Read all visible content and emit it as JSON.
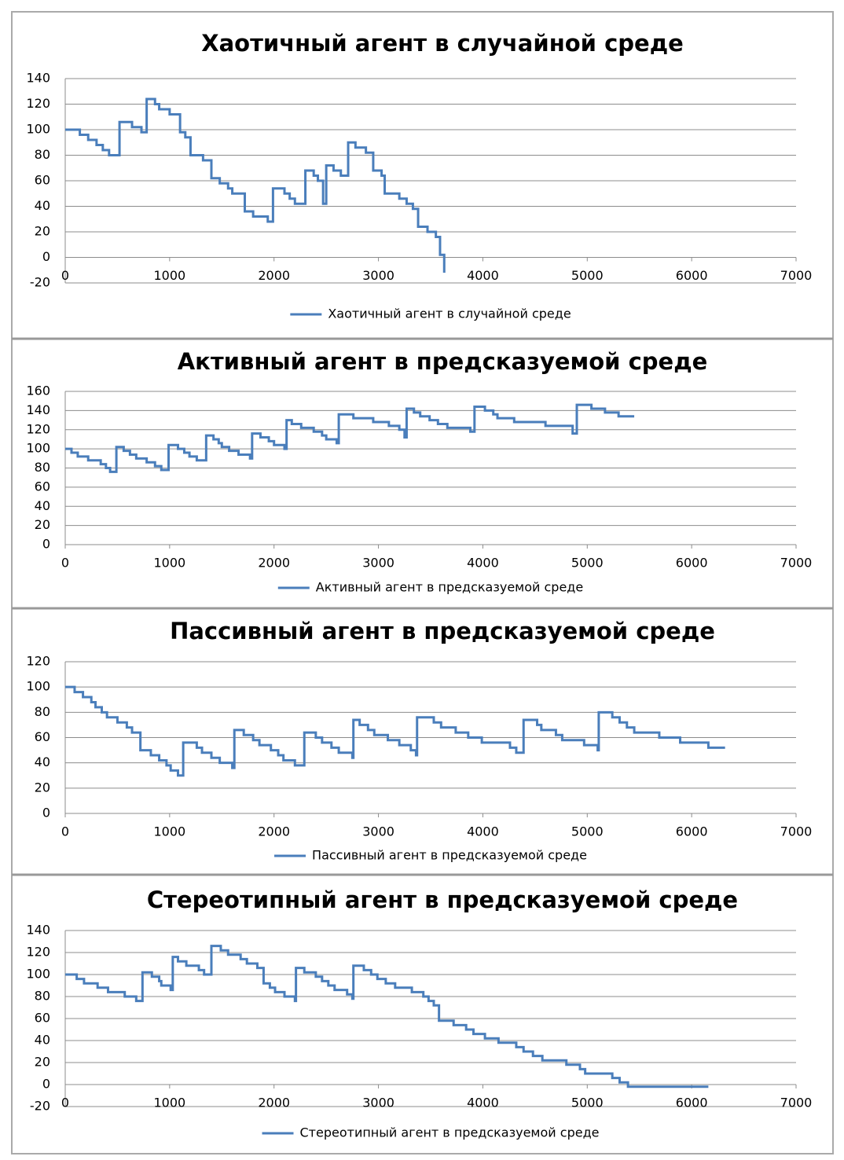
{
  "chart_data": [
    {
      "type": "line",
      "step": true,
      "title": "Хаотичный агент в случайной среде",
      "x": [
        0,
        140,
        220,
        300,
        360,
        420,
        520,
        640,
        730,
        780,
        860,
        900,
        1000,
        1100,
        1150,
        1200,
        1320,
        1400,
        1480,
        1560,
        1600,
        1720,
        1800,
        1940,
        1990,
        2100,
        2150,
        2200,
        2300,
        2380,
        2420,
        2470,
        2500,
        2570,
        2640,
        2710,
        2780,
        2880,
        2950,
        3030,
        3060,
        3200,
        3270,
        3330,
        3380,
        3470,
        3550,
        3590,
        3630
      ],
      "series": [
        {
          "name": "Хаотичный агент в случайной среде",
          "color": "#4a7ebb",
          "values": [
            100,
            96,
            92,
            88,
            84,
            80,
            106,
            102,
            98,
            124,
            120,
            116,
            112,
            98,
            94,
            80,
            76,
            62,
            58,
            54,
            50,
            36,
            32,
            28,
            54,
            50,
            46,
            42,
            68,
            64,
            60,
            42,
            72,
            68,
            64,
            90,
            86,
            82,
            68,
            64,
            50,
            46,
            42,
            38,
            24,
            20,
            16,
            2,
            -12
          ]
        }
      ],
      "xlim": [
        0,
        7000
      ],
      "xticks": [
        0,
        1000,
        2000,
        3000,
        4000,
        5000,
        6000,
        7000
      ],
      "ylim": [
        -20,
        140
      ],
      "yticks": [
        -20,
        0,
        20,
        40,
        60,
        80,
        100,
        120,
        140
      ],
      "grid": true
    },
    {
      "type": "line",
      "step": true,
      "title": "Активный агент в предсказуемой среде",
      "x": [
        0,
        60,
        120,
        220,
        340,
        390,
        430,
        490,
        560,
        620,
        680,
        780,
        860,
        920,
        990,
        1080,
        1140,
        1190,
        1260,
        1350,
        1420,
        1470,
        1500,
        1570,
        1660,
        1770,
        1790,
        1870,
        1950,
        2000,
        2100,
        2120,
        2170,
        2260,
        2380,
        2460,
        2500,
        2600,
        2620,
        2760,
        2950,
        3100,
        3200,
        3250,
        3270,
        3340,
        3400,
        3490,
        3570,
        3660,
        3880,
        3920,
        4020,
        4100,
        4140,
        4300,
        4600,
        4860,
        4900,
        5040,
        5170,
        5300,
        5450
      ],
      "series": [
        {
          "name": "Активный агент в предсказуемой среде",
          "color": "#4a7ebb",
          "values": [
            100,
            96,
            92,
            88,
            84,
            80,
            76,
            102,
            98,
            94,
            90,
            86,
            82,
            78,
            104,
            100,
            96,
            92,
            88,
            114,
            110,
            106,
            102,
            98,
            94,
            90,
            116,
            112,
            108,
            104,
            100,
            130,
            126,
            122,
            118,
            114,
            110,
            106,
            136,
            132,
            128,
            124,
            120,
            112,
            142,
            138,
            134,
            130,
            126,
            122,
            118,
            144,
            140,
            136,
            132,
            128,
            124,
            116,
            146,
            142,
            138,
            134,
            134
          ]
        }
      ],
      "xlim": [
        0,
        7000
      ],
      "xticks": [
        0,
        1000,
        2000,
        3000,
        4000,
        5000,
        6000,
        7000
      ],
      "ylim": [
        0,
        160
      ],
      "yticks": [
        0,
        20,
        40,
        60,
        80,
        100,
        120,
        140,
        160
      ],
      "grid": true
    },
    {
      "type": "line",
      "step": true,
      "title": "Пассивный агент в предсказуемой среде",
      "x": [
        0,
        90,
        170,
        250,
        290,
        350,
        400,
        500,
        590,
        640,
        720,
        820,
        900,
        970,
        1010,
        1080,
        1130,
        1260,
        1310,
        1400,
        1480,
        1600,
        1620,
        1710,
        1800,
        1860,
        1970,
        2040,
        2090,
        2200,
        2290,
        2400,
        2460,
        2550,
        2620,
        2750,
        2760,
        2820,
        2900,
        2960,
        3090,
        3200,
        3310,
        3360,
        3370,
        3530,
        3600,
        3740,
        3860,
        3990,
        4260,
        4320,
        4390,
        4520,
        4560,
        4700,
        4760,
        4970,
        5100,
        5110,
        5240,
        5310,
        5380,
        5450,
        5690,
        5890,
        6160,
        6320
      ],
      "series": [
        {
          "name": "Пассивный агент в предсказуемой среде",
          "color": "#4a7ebb",
          "values": [
            100,
            96,
            92,
            88,
            84,
            80,
            76,
            72,
            68,
            64,
            50,
            46,
            42,
            38,
            34,
            30,
            56,
            52,
            48,
            44,
            40,
            36,
            66,
            62,
            58,
            54,
            50,
            46,
            42,
            38,
            64,
            60,
            56,
            52,
            48,
            44,
            74,
            70,
            66,
            62,
            58,
            54,
            50,
            46,
            76,
            72,
            68,
            64,
            60,
            56,
            52,
            48,
            74,
            70,
            66,
            62,
            58,
            54,
            50,
            80,
            76,
            72,
            68,
            64,
            60,
            56,
            52,
            52
          ]
        }
      ],
      "xlim": [
        0,
        7000
      ],
      "xticks": [
        0,
        1000,
        2000,
        3000,
        4000,
        5000,
        6000,
        7000
      ],
      "ylim": [
        0,
        120
      ],
      "yticks": [
        0,
        20,
        40,
        60,
        80,
        100,
        120
      ],
      "grid": true
    },
    {
      "type": "line",
      "step": true,
      "title": "Стереотипный агент в предсказуемой среде",
      "x": [
        0,
        110,
        180,
        310,
        410,
        570,
        680,
        740,
        830,
        900,
        920,
        1010,
        1030,
        1080,
        1160,
        1280,
        1330,
        1400,
        1490,
        1560,
        1680,
        1740,
        1840,
        1900,
        1960,
        2010,
        2100,
        2200,
        2210,
        2290,
        2400,
        2460,
        2520,
        2580,
        2700,
        2750,
        2760,
        2860,
        2930,
        2990,
        3070,
        3160,
        3320,
        3430,
        3480,
        3530,
        3580,
        3720,
        3840,
        3910,
        4020,
        4150,
        4320,
        4390,
        4480,
        4570,
        4800,
        4930,
        4980,
        5240,
        5310,
        5390,
        6160
      ],
      "series": [
        {
          "name": "Стереотипный агент в предсказуемой среде",
          "color": "#4a7ebb",
          "values": [
            100,
            96,
            92,
            88,
            84,
            80,
            76,
            102,
            98,
            94,
            90,
            86,
            116,
            112,
            108,
            104,
            100,
            126,
            122,
            118,
            114,
            110,
            106,
            92,
            88,
            84,
            80,
            76,
            106,
            102,
            98,
            94,
            90,
            86,
            82,
            78,
            108,
            104,
            100,
            96,
            92,
            88,
            84,
            80,
            76,
            72,
            58,
            54,
            50,
            46,
            42,
            38,
            34,
            30,
            26,
            22,
            18,
            14,
            10,
            6,
            2,
            -2,
            -2
          ]
        }
      ],
      "xlim": [
        0,
        7000
      ],
      "xticks": [
        0,
        1000,
        2000,
        3000,
        4000,
        5000,
        6000,
        7000
      ],
      "ylim": [
        -20,
        140
      ],
      "yticks": [
        -20,
        0,
        20,
        40,
        60,
        80,
        100,
        120,
        140
      ],
      "grid": true
    }
  ]
}
